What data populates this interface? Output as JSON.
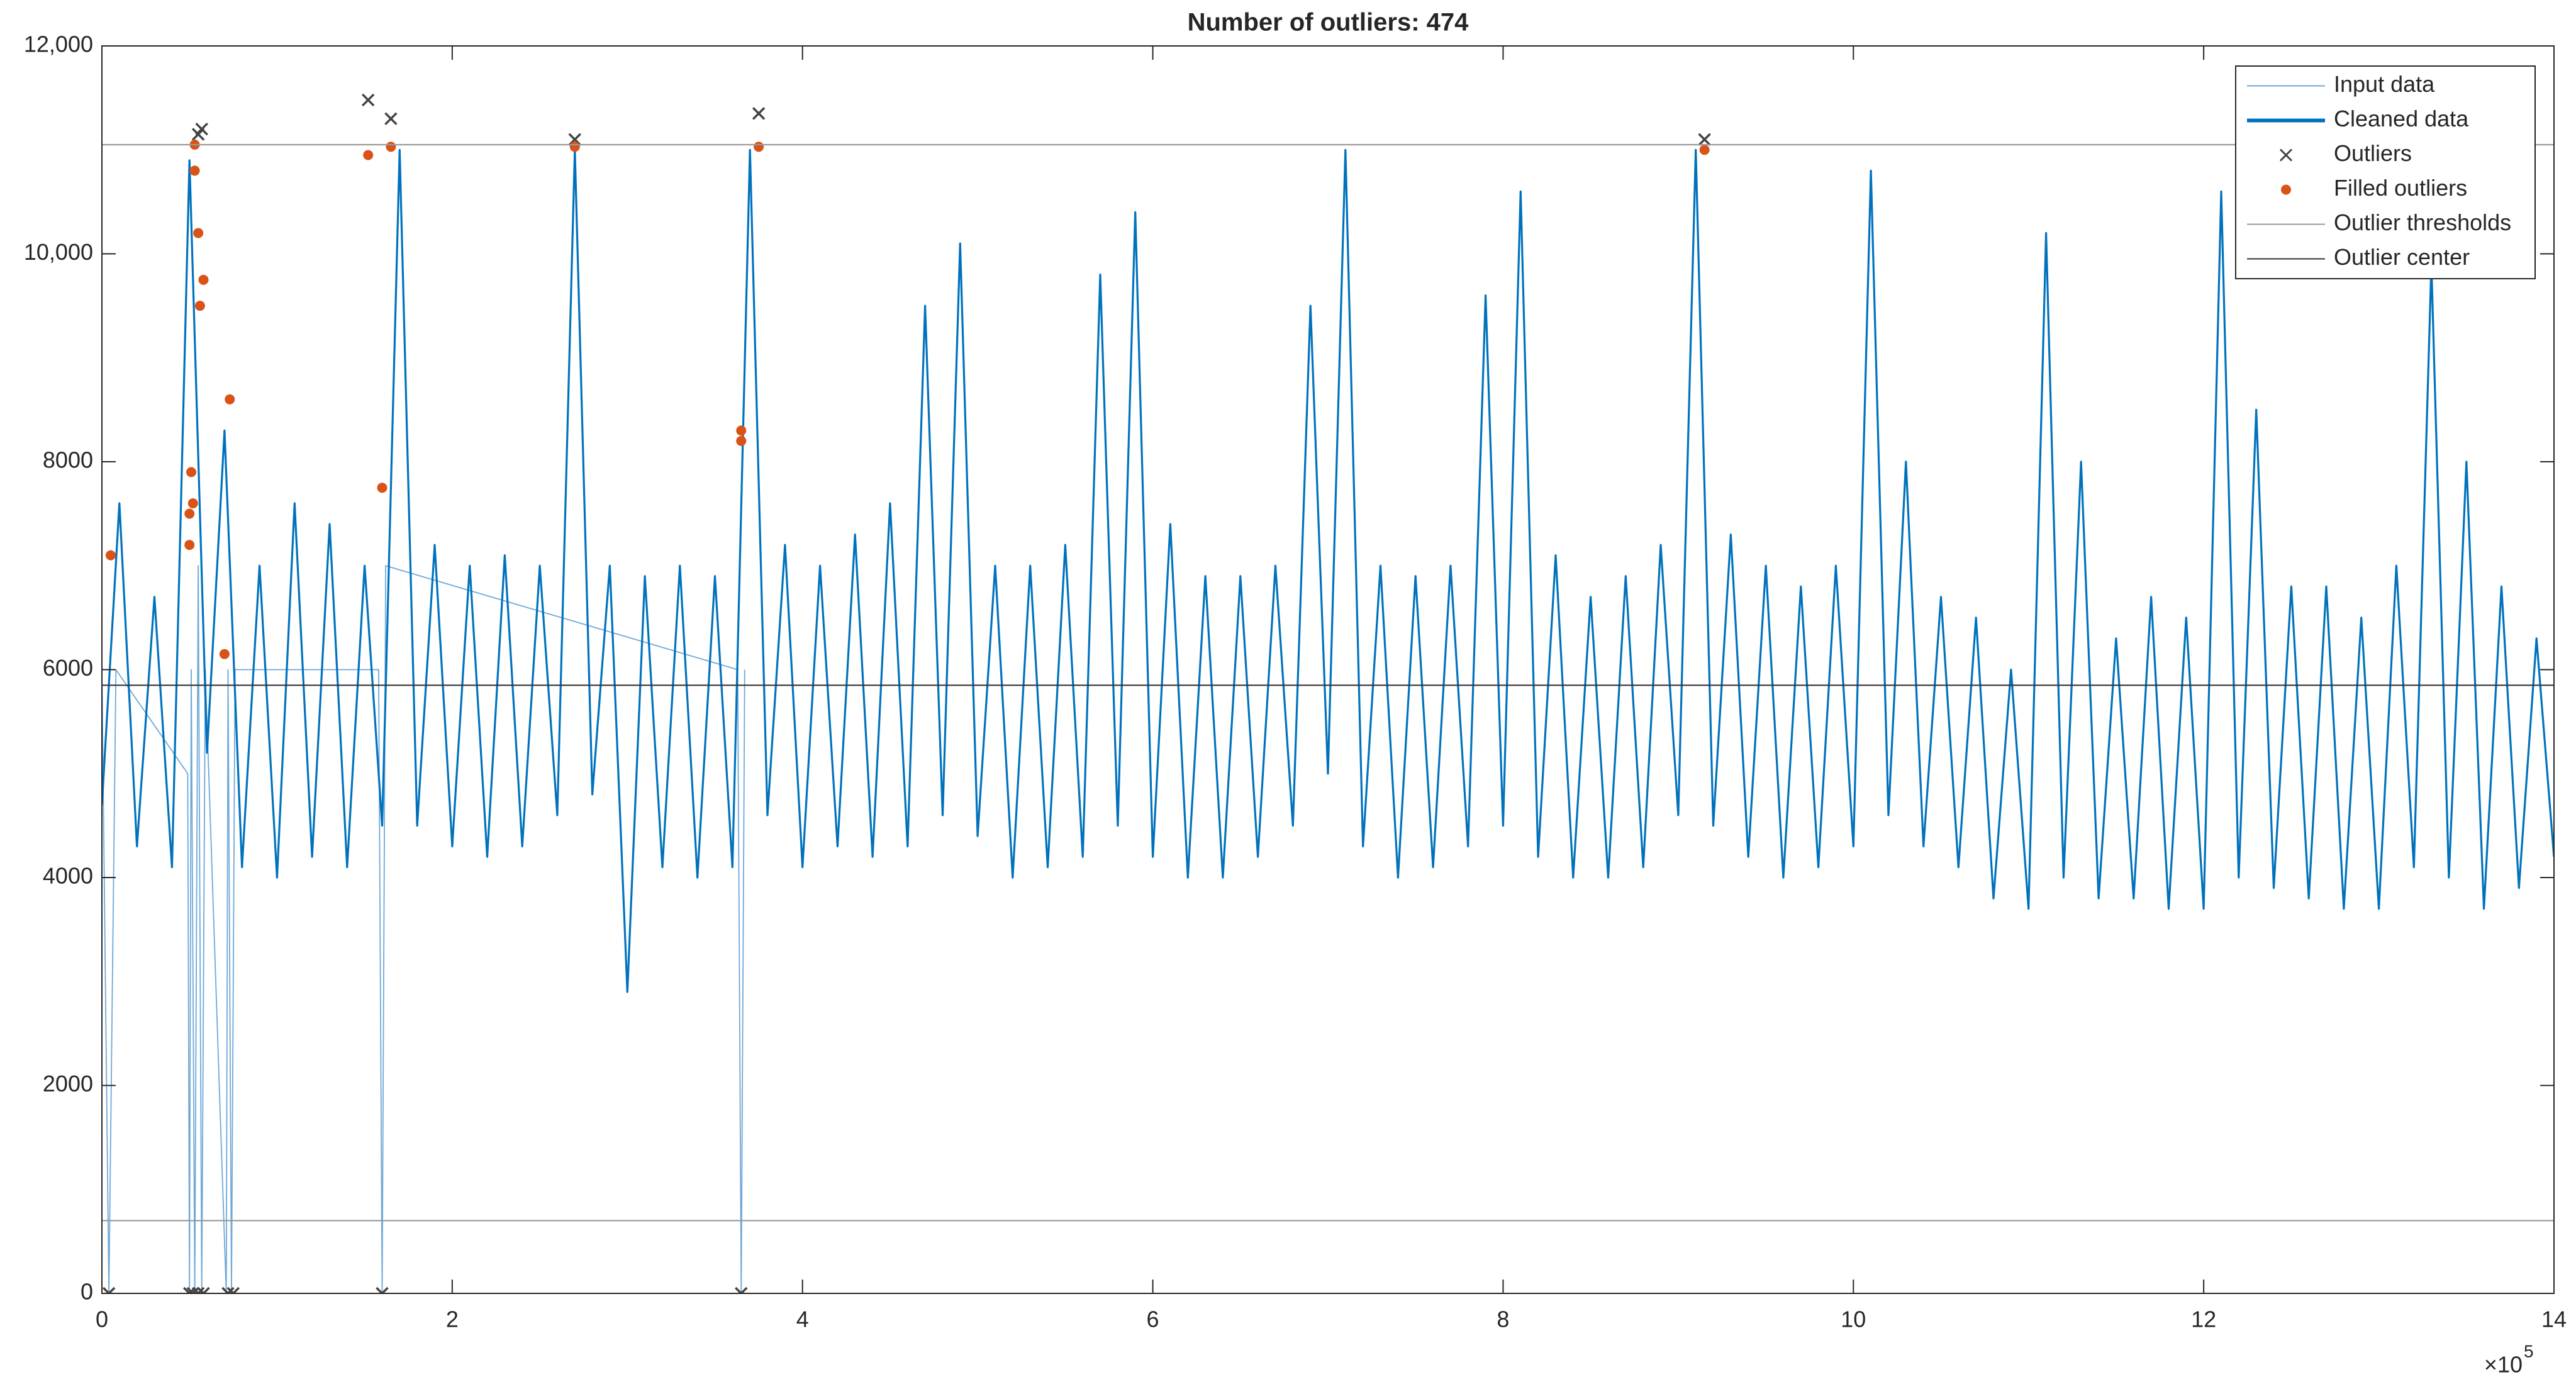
{
  "chart_data": {
    "type": "line",
    "title": "Number of outliers: 474",
    "x_multiplier": "×10",
    "x_multiplier_exponent": "5",
    "xlim": [
      0,
      1400000
    ],
    "xticks": [
      {
        "value": 0,
        "label": "0"
      },
      {
        "value": 200000,
        "label": "2"
      },
      {
        "value": 400000,
        "label": "4"
      },
      {
        "value": 600000,
        "label": "6"
      },
      {
        "value": 800000,
        "label": "8"
      },
      {
        "value": 1000000,
        "label": "10"
      },
      {
        "value": 1200000,
        "label": "12"
      },
      {
        "value": 1400000,
        "label": "14"
      }
    ],
    "ylim": [
      0,
      12000
    ],
    "yticks": [
      0,
      2000,
      4000,
      6000,
      8000,
      {
        "value": 10000,
        "label": "10,000"
      },
      {
        "value": 12000,
        "label": "12,000"
      }
    ],
    "grid": false,
    "legend": "northeast",
    "series": [
      {
        "name": "Input data",
        "kind": "line",
        "color": "#6ea8d8",
        "x": [
          0,
          4000,
          8000,
          49000,
          50000,
          51000,
          53000,
          55000,
          57000,
          59000,
          71000,
          72000,
          74000,
          76000,
          158000,
          160000,
          162000,
          363000,
          365000,
          367000
        ],
        "values": [
          6000,
          0,
          6000,
          5000,
          0,
          6000,
          0,
          7000,
          0,
          6000,
          0,
          6000,
          0,
          6000,
          6000,
          0,
          7000,
          6000,
          0,
          6000
        ]
      },
      {
        "name": "Cleaned data",
        "kind": "line",
        "color": "#0072bd",
        "x": [
          0,
          10000,
          20000,
          30000,
          40000,
          50000,
          60000,
          70000,
          80000,
          90000,
          100000,
          110000,
          120000,
          130000,
          140000,
          150000,
          160000,
          170000,
          180000,
          190000,
          200000,
          210000,
          220000,
          230000,
          240000,
          250000,
          260000,
          270000,
          280000,
          290000,
          300000,
          310000,
          320000,
          330000,
          340000,
          350000,
          360000,
          370000,
          380000,
          390000,
          400000,
          410000,
          420000,
          430000,
          440000,
          450000,
          460000,
          470000,
          480000,
          490000,
          500000,
          510000,
          520000,
          530000,
          540000,
          550000,
          560000,
          570000,
          580000,
          590000,
          600000,
          610000,
          620000,
          630000,
          640000,
          650000,
          660000,
          670000,
          680000,
          690000,
          700000,
          710000,
          720000,
          730000,
          740000,
          750000,
          760000,
          770000,
          780000,
          790000,
          800000,
          810000,
          820000,
          830000,
          840000,
          850000,
          860000,
          870000,
          880000,
          890000,
          900000,
          910000,
          920000,
          930000,
          940000,
          950000,
          960000,
          970000,
          980000,
          990000,
          1000000,
          1010000,
          1020000,
          1030000,
          1040000,
          1050000,
          1060000,
          1070000,
          1080000,
          1090000,
          1100000,
          1110000,
          1120000,
          1130000,
          1140000,
          1150000,
          1160000,
          1170000,
          1180000,
          1190000,
          1200000,
          1210000,
          1220000,
          1230000,
          1240000,
          1250000,
          1260000,
          1270000,
          1280000,
          1290000,
          1300000,
          1310000,
          1320000,
          1330000,
          1340000,
          1350000,
          1360000,
          1370000,
          1380000,
          1390000,
          1400000
        ],
        "values": [
          4700,
          7600,
          4300,
          6700,
          4100,
          10900,
          5200,
          8300,
          4100,
          7000,
          4000,
          7600,
          4200,
          7400,
          4100,
          7000,
          4500,
          11000,
          4500,
          7200,
          4300,
          7000,
          4200,
          7100,
          4300,
          7000,
          4600,
          11000,
          4800,
          7000,
          2900,
          6900,
          4100,
          7000,
          4000,
          6900,
          4100,
          11000,
          4600,
          7200,
          4100,
          7000,
          4300,
          7300,
          4200,
          7600,
          4300,
          9500,
          4600,
          10100,
          4400,
          7000,
          4000,
          7000,
          4100,
          7200,
          4200,
          9800,
          4500,
          10400,
          4200,
          7400,
          4000,
          6900,
          4000,
          6900,
          4200,
          7000,
          4500,
          9500,
          5000,
          11000,
          4300,
          7000,
          4000,
          6900,
          4100,
          7000,
          4300,
          9600,
          4500,
          10600,
          4200,
          7100,
          4000,
          6700,
          4000,
          6900,
          4100,
          7200,
          4600,
          11000,
          4500,
          7300,
          4200,
          7000,
          4000,
          6800,
          4100,
          7000,
          4300,
          10800,
          4600,
          8000,
          4300,
          6700,
          4100,
          6500,
          3800,
          6000,
          3700,
          10200,
          4000,
          8000,
          3800,
          6300,
          3800,
          6700,
          3700,
          6500,
          3700,
          10600,
          4000,
          8500,
          3900,
          6800,
          3800,
          6800,
          3700,
          6500,
          3700,
          7000,
          4100,
          9900,
          4000,
          8000,
          3700,
          6800,
          3900,
          6300,
          4200
        ]
      },
      {
        "name": "Outliers",
        "kind": "x-marker",
        "color": "#444444",
        "x": [
          4000,
          50000,
          52000,
          55000,
          58000,
          72000,
          75000,
          160000,
          365000,
          55000,
          57000,
          152000,
          165000,
          270000,
          375000,
          915000
        ],
        "values": [
          0,
          0,
          0,
          0,
          0,
          0,
          0,
          0,
          0,
          11150,
          11200,
          11480,
          11300,
          11100,
          11350,
          11100
        ]
      },
      {
        "name": "Filled outliers",
        "kind": "dot",
        "color": "#d95319",
        "x": [
          5000,
          50000,
          50000,
          51000,
          52000,
          53000,
          55000,
          56000,
          58000,
          53000,
          70000,
          73000,
          152000,
          160000,
          165000,
          270000,
          365000,
          365000,
          375000,
          915000
        ],
        "values": [
          7100,
          7500,
          7200,
          7900,
          7600,
          10800,
          10200,
          9500,
          9750,
          11050,
          6150,
          8600,
          10950,
          7750,
          11030,
          11030,
          8300,
          8200,
          11030,
          11000
        ]
      },
      {
        "name": "Outlier thresholds",
        "kind": "hline",
        "color": "#9a9a9a",
        "values": [
          700,
          11050
        ]
      },
      {
        "name": "Outlier center",
        "kind": "hline",
        "color": "#333333",
        "values": [
          5850
        ]
      }
    ]
  }
}
